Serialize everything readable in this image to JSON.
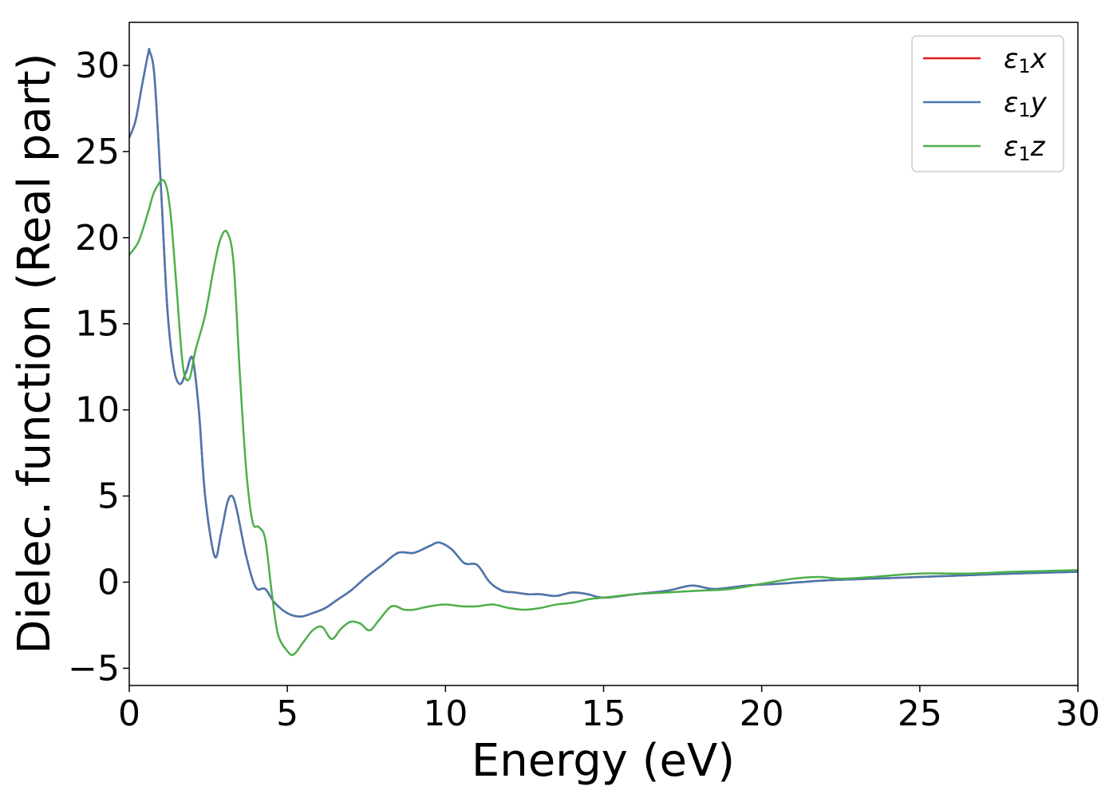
{
  "chart_data": {
    "type": "line",
    "title": "",
    "xlabel": "Energy (eV)",
    "ylabel": "Dielec. function (Real part)",
    "xlim": [
      0,
      30
    ],
    "ylim": [
      -6,
      32.5
    ],
    "xticks": [
      0,
      5,
      10,
      15,
      20,
      25,
      30
    ],
    "xtick_labels": [
      "0",
      "5",
      "10",
      "15",
      "20",
      "25",
      "30"
    ],
    "yticks": [
      -5,
      0,
      5,
      10,
      15,
      20,
      25,
      30
    ],
    "ytick_labels": [
      "−5",
      "0",
      "5",
      "10",
      "15",
      "20",
      "25",
      "30"
    ],
    "grid": false,
    "legend_position": "top-right",
    "series": [
      {
        "name": "ε1x",
        "legend_symbol": "ε",
        "legend_sub": "1",
        "legend_var": "x",
        "color": "#e41a1c",
        "x": [
          0,
          0.2,
          0.4,
          0.6,
          0.65,
          0.8,
          1.0,
          1.2,
          1.4,
          1.6,
          1.8,
          2.0,
          2.2,
          2.4,
          2.7,
          2.9,
          3.1,
          3.25,
          3.4,
          3.7,
          4.0,
          4.3,
          4.6,
          5.0,
          5.4,
          5.8,
          6.2,
          6.6,
          7.0,
          7.5,
          8.0,
          8.5,
          9.0,
          9.5,
          9.8,
          10.2,
          10.6,
          11.0,
          11.4,
          11.8,
          12.2,
          12.6,
          13.0,
          13.5,
          14.0,
          14.5,
          15.0,
          16.0,
          17.0,
          17.8,
          18.5,
          19.5,
          20.5,
          22.0,
          23.5,
          25.0,
          26.5,
          28.0,
          30.0
        ],
        "y": [
          25.8,
          26.8,
          28.8,
          30.7,
          30.8,
          29.3,
          23.0,
          16.0,
          12.5,
          11.5,
          12.2,
          13.0,
          10.0,
          5.0,
          1.5,
          2.8,
          4.6,
          5.0,
          4.2,
          1.5,
          -0.3,
          -0.4,
          -1.2,
          -1.8,
          -2.0,
          -1.8,
          -1.5,
          -1.0,
          -0.5,
          0.3,
          1.0,
          1.7,
          1.7,
          2.1,
          2.3,
          1.9,
          1.1,
          1.0,
          0.0,
          -0.5,
          -0.6,
          -0.7,
          -0.7,
          -0.8,
          -0.6,
          -0.7,
          -0.9,
          -0.7,
          -0.5,
          -0.2,
          -0.4,
          -0.2,
          -0.1,
          0.1,
          0.2,
          0.3,
          0.4,
          0.5,
          0.6
        ]
      },
      {
        "name": "ε1y",
        "legend_symbol": "ε",
        "legend_sub": "1",
        "legend_var": "y",
        "color": "#4878b0",
        "x": [
          0,
          0.2,
          0.4,
          0.6,
          0.65,
          0.8,
          1.0,
          1.2,
          1.4,
          1.6,
          1.8,
          2.0,
          2.2,
          2.4,
          2.7,
          2.9,
          3.1,
          3.25,
          3.4,
          3.7,
          4.0,
          4.3,
          4.6,
          5.0,
          5.4,
          5.8,
          6.2,
          6.6,
          7.0,
          7.5,
          8.0,
          8.5,
          9.0,
          9.5,
          9.8,
          10.2,
          10.6,
          11.0,
          11.4,
          11.8,
          12.2,
          12.6,
          13.0,
          13.5,
          14.0,
          14.5,
          15.0,
          16.0,
          17.0,
          17.8,
          18.5,
          19.5,
          20.5,
          22.0,
          23.5,
          25.0,
          26.5,
          28.0,
          30.0
        ],
        "y": [
          25.8,
          26.8,
          28.8,
          30.7,
          30.8,
          29.3,
          23.0,
          16.0,
          12.5,
          11.5,
          12.2,
          13.0,
          10.0,
          5.0,
          1.5,
          2.8,
          4.6,
          5.0,
          4.2,
          1.5,
          -0.3,
          -0.4,
          -1.2,
          -1.8,
          -2.0,
          -1.8,
          -1.5,
          -1.0,
          -0.5,
          0.3,
          1.0,
          1.7,
          1.7,
          2.1,
          2.3,
          1.9,
          1.1,
          1.0,
          0.0,
          -0.5,
          -0.6,
          -0.7,
          -0.7,
          -0.8,
          -0.6,
          -0.7,
          -0.9,
          -0.7,
          -0.5,
          -0.2,
          -0.4,
          -0.2,
          -0.1,
          0.1,
          0.2,
          0.3,
          0.4,
          0.5,
          0.6
        ]
      },
      {
        "name": "ε1z",
        "legend_symbol": "ε",
        "legend_sub": "1",
        "legend_var": "z",
        "color": "#4daf4a",
        "x": [
          0,
          0.3,
          0.6,
          0.8,
          1.1,
          1.3,
          1.5,
          1.7,
          1.9,
          2.1,
          2.4,
          2.7,
          2.9,
          3.1,
          3.3,
          3.5,
          3.7,
          3.9,
          4.1,
          4.3,
          4.5,
          4.7,
          5.0,
          5.2,
          5.5,
          5.8,
          6.1,
          6.4,
          6.7,
          7.0,
          7.3,
          7.6,
          7.9,
          8.3,
          8.7,
          9.0,
          9.5,
          10.0,
          10.5,
          11.0,
          11.5,
          12.0,
          12.5,
          13.0,
          13.5,
          14.0,
          14.5,
          15.0,
          16.0,
          17.0,
          18.0,
          19.0,
          20.0,
          21.0,
          21.8,
          22.5,
          23.5,
          25.0,
          26.5,
          28.0,
          30.0
        ],
        "y": [
          19.0,
          19.8,
          21.5,
          22.7,
          23.3,
          21.5,
          17.0,
          12.5,
          11.8,
          13.5,
          15.5,
          18.5,
          20.0,
          20.3,
          18.5,
          12.0,
          6.5,
          3.5,
          3.2,
          2.5,
          -0.5,
          -3.0,
          -4.0,
          -4.2,
          -3.5,
          -2.8,
          -2.6,
          -3.3,
          -2.7,
          -2.3,
          -2.4,
          -2.8,
          -2.2,
          -1.4,
          -1.6,
          -1.6,
          -1.4,
          -1.3,
          -1.4,
          -1.4,
          -1.3,
          -1.5,
          -1.6,
          -1.5,
          -1.3,
          -1.2,
          -1.0,
          -0.9,
          -0.7,
          -0.6,
          -0.5,
          -0.4,
          -0.1,
          0.2,
          0.3,
          0.2,
          0.3,
          0.5,
          0.5,
          0.6,
          0.7
        ]
      }
    ]
  }
}
